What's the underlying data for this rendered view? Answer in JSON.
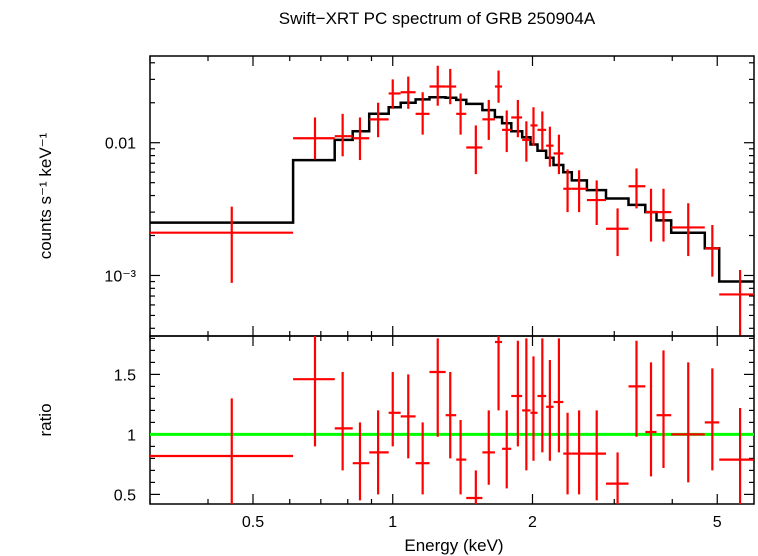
{
  "chart_data": {
    "type": "scatter",
    "title": "Swift−XRT PC spectrum of GRB 250904A",
    "xlabel": "Energy (keV)",
    "x_scale": "log",
    "xlim": [
      0.3,
      6.0
    ],
    "x_ticks": [
      {
        "value": 0.5,
        "label": "0.5"
      },
      {
        "value": 1,
        "label": "1"
      },
      {
        "value": 2,
        "label": "2"
      },
      {
        "value": 5,
        "label": "5"
      }
    ],
    "colors": {
      "data": "#ff0000",
      "model": "#000000",
      "unity_line": "#00ff00",
      "axes": "#000000"
    },
    "panels": [
      {
        "name": "spectrum",
        "ylabel": "counts s⁻¹ keV⁻¹",
        "y_scale": "log",
        "ylim": [
          0.00035,
          0.045
        ],
        "y_ticks": [
          {
            "value": 0.01,
            "label": "0.01"
          },
          {
            "value": 0.001,
            "label": "10⁻³"
          }
        ],
        "data": [
          {
            "x": 0.45,
            "xlo": 0.3,
            "xhi": 0.61,
            "y": 0.0021,
            "ylo": 0.00088,
            "yhi": 0.0033
          },
          {
            "x": 0.68,
            "xlo": 0.61,
            "xhi": 0.75,
            "y": 0.0108,
            "ylo": 0.0075,
            "yhi": 0.0155
          },
          {
            "x": 0.78,
            "xlo": 0.75,
            "xhi": 0.82,
            "y": 0.0112,
            "ylo": 0.0079,
            "yhi": 0.0165
          },
          {
            "x": 0.85,
            "xlo": 0.82,
            "xhi": 0.89,
            "y": 0.0108,
            "ylo": 0.0074,
            "yhi": 0.0155
          },
          {
            "x": 0.93,
            "xlo": 0.89,
            "xhi": 0.98,
            "y": 0.015,
            "ylo": 0.011,
            "yhi": 0.02
          },
          {
            "x": 1.0,
            "xlo": 0.98,
            "xhi": 1.04,
            "y": 0.0235,
            "ylo": 0.018,
            "yhi": 0.03
          },
          {
            "x": 1.08,
            "xlo": 1.04,
            "xhi": 1.12,
            "y": 0.024,
            "ylo": 0.018,
            "yhi": 0.0315
          },
          {
            "x": 1.16,
            "xlo": 1.12,
            "xhi": 1.2,
            "y": 0.0165,
            "ylo": 0.0115,
            "yhi": 0.024
          },
          {
            "x": 1.25,
            "xlo": 1.2,
            "xhi": 1.3,
            "y": 0.0265,
            "ylo": 0.019,
            "yhi": 0.038
          },
          {
            "x": 1.33,
            "xlo": 1.3,
            "xhi": 1.37,
            "y": 0.0265,
            "ylo": 0.0195,
            "yhi": 0.036
          },
          {
            "x": 1.4,
            "xlo": 1.37,
            "xhi": 1.44,
            "y": 0.0165,
            "ylo": 0.0115,
            "yhi": 0.0235
          },
          {
            "x": 1.51,
            "xlo": 1.44,
            "xhi": 1.56,
            "y": 0.0092,
            "ylo": 0.0058,
            "yhi": 0.0135
          },
          {
            "x": 1.61,
            "xlo": 1.56,
            "xhi": 1.66,
            "y": 0.015,
            "ylo": 0.0105,
            "yhi": 0.021
          },
          {
            "x": 1.69,
            "xlo": 1.66,
            "xhi": 1.72,
            "y": 0.0265,
            "ylo": 0.02,
            "yhi": 0.035
          },
          {
            "x": 1.76,
            "xlo": 1.72,
            "xhi": 1.8,
            "y": 0.0125,
            "ylo": 0.0085,
            "yhi": 0.0175
          },
          {
            "x": 1.86,
            "xlo": 1.8,
            "xhi": 1.9,
            "y": 0.0155,
            "ylo": 0.011,
            "yhi": 0.021
          },
          {
            "x": 1.94,
            "xlo": 1.9,
            "xhi": 1.98,
            "y": 0.0105,
            "ylo": 0.0072,
            "yhi": 0.0145
          },
          {
            "x": 2.01,
            "xlo": 1.98,
            "xhi": 2.05,
            "y": 0.0135,
            "ylo": 0.0095,
            "yhi": 0.0185
          },
          {
            "x": 2.1,
            "xlo": 2.05,
            "xhi": 2.14,
            "y": 0.0125,
            "ylo": 0.0088,
            "yhi": 0.0172
          },
          {
            "x": 2.18,
            "xlo": 2.14,
            "xhi": 2.22,
            "y": 0.0095,
            "ylo": 0.0066,
            "yhi": 0.0132
          },
          {
            "x": 2.28,
            "xlo": 2.22,
            "xhi": 2.33,
            "y": 0.0083,
            "ylo": 0.0058,
            "yhi": 0.0115
          },
          {
            "x": 2.38,
            "xlo": 2.33,
            "xhi": 2.43,
            "y": 0.0045,
            "ylo": 0.003,
            "yhi": 0.0063
          },
          {
            "x": 2.52,
            "xlo": 2.43,
            "xhi": 2.62,
            "y": 0.0045,
            "ylo": 0.003,
            "yhi": 0.0062
          },
          {
            "x": 2.75,
            "xlo": 2.62,
            "xhi": 2.88,
            "y": 0.0037,
            "ylo": 0.0024,
            "yhi": 0.0052
          },
          {
            "x": 3.05,
            "xlo": 2.88,
            "xhi": 3.22,
            "y": 0.00225,
            "ylo": 0.0014,
            "yhi": 0.0032
          },
          {
            "x": 3.35,
            "xlo": 3.22,
            "xhi": 3.5,
            "y": 0.0047,
            "ylo": 0.0032,
            "yhi": 0.0064
          },
          {
            "x": 3.6,
            "xlo": 3.5,
            "xhi": 3.7,
            "y": 0.003,
            "ylo": 0.0018,
            "yhi": 0.0045
          },
          {
            "x": 3.83,
            "xlo": 3.7,
            "xhi": 3.98,
            "y": 0.003,
            "ylo": 0.0018,
            "yhi": 0.0045
          },
          {
            "x": 4.33,
            "xlo": 3.98,
            "xhi": 4.7,
            "y": 0.0023,
            "ylo": 0.0014,
            "yhi": 0.0035
          },
          {
            "x": 4.88,
            "xlo": 4.7,
            "xhi": 5.05,
            "y": 0.0016,
            "ylo": 0.00098,
            "yhi": 0.0024
          },
          {
            "x": 5.6,
            "xlo": 5.05,
            "xhi": 6.0,
            "y": 0.00072,
            "ylo": 0.00035,
            "yhi": 0.0011
          }
        ],
        "model": [
          {
            "xlo": 0.3,
            "xhi": 0.61,
            "y": 0.0025
          },
          {
            "xlo": 0.61,
            "xhi": 0.75,
            "y": 0.0074
          },
          {
            "xlo": 0.75,
            "xhi": 0.82,
            "y": 0.0105
          },
          {
            "xlo": 0.82,
            "xhi": 0.89,
            "y": 0.0122
          },
          {
            "xlo": 0.89,
            "xhi": 0.98,
            "y": 0.0165
          },
          {
            "xlo": 0.98,
            "xhi": 1.04,
            "y": 0.0185
          },
          {
            "xlo": 1.04,
            "xhi": 1.12,
            "y": 0.02
          },
          {
            "xlo": 1.12,
            "xhi": 1.2,
            "y": 0.0212
          },
          {
            "xlo": 1.2,
            "xhi": 1.3,
            "y": 0.022
          },
          {
            "xlo": 1.3,
            "xhi": 1.37,
            "y": 0.0218
          },
          {
            "xlo": 1.37,
            "xhi": 1.44,
            "y": 0.021
          },
          {
            "xlo": 1.44,
            "xhi": 1.56,
            "y": 0.0196
          },
          {
            "xlo": 1.56,
            "xhi": 1.66,
            "y": 0.0176
          },
          {
            "xlo": 1.66,
            "xhi": 1.72,
            "y": 0.0156
          },
          {
            "xlo": 1.72,
            "xhi": 1.8,
            "y": 0.014
          },
          {
            "xlo": 1.8,
            "xhi": 1.9,
            "y": 0.0122
          },
          {
            "xlo": 1.9,
            "xhi": 1.98,
            "y": 0.011
          },
          {
            "xlo": 1.98,
            "xhi": 2.05,
            "y": 0.0097
          },
          {
            "xlo": 2.05,
            "xhi": 2.14,
            "y": 0.0087
          },
          {
            "xlo": 2.14,
            "xhi": 2.22,
            "y": 0.0077
          },
          {
            "xlo": 2.22,
            "xhi": 2.33,
            "y": 0.0068
          },
          {
            "xlo": 2.33,
            "xhi": 2.43,
            "y": 0.006
          },
          {
            "xlo": 2.43,
            "xhi": 2.62,
            "y": 0.0052
          },
          {
            "xlo": 2.62,
            "xhi": 2.88,
            "y": 0.0044
          },
          {
            "xlo": 2.88,
            "xhi": 3.22,
            "y": 0.0038
          },
          {
            "xlo": 3.22,
            "xhi": 3.5,
            "y": 0.0034
          },
          {
            "xlo": 3.5,
            "xhi": 3.7,
            "y": 0.003
          },
          {
            "xlo": 3.7,
            "xhi": 3.98,
            "y": 0.0026
          },
          {
            "xlo": 3.98,
            "xhi": 4.7,
            "y": 0.0021
          },
          {
            "xlo": 4.7,
            "xhi": 5.05,
            "y": 0.0016
          },
          {
            "xlo": 5.05,
            "xhi": 6.0,
            "y": 0.0009
          }
        ]
      },
      {
        "name": "ratio",
        "ylabel": "ratio",
        "y_scale": "linear",
        "ylim": [
          0.42,
          1.82
        ],
        "y_ticks": [
          {
            "value": 0.5,
            "label": "0.5"
          },
          {
            "value": 1,
            "label": "1"
          },
          {
            "value": 1.5,
            "label": "1.5"
          }
        ],
        "reference_line": 1,
        "data": [
          {
            "x": 0.45,
            "xlo": 0.3,
            "xhi": 0.61,
            "y": 0.82,
            "ylo": 0.35,
            "yhi": 1.3
          },
          {
            "x": 0.68,
            "xlo": 0.61,
            "xhi": 0.75,
            "y": 1.46,
            "ylo": 0.9,
            "yhi": 1.82
          },
          {
            "x": 0.78,
            "xlo": 0.75,
            "xhi": 0.82,
            "y": 1.05,
            "ylo": 0.7,
            "yhi": 1.52
          },
          {
            "x": 0.85,
            "xlo": 0.82,
            "xhi": 0.89,
            "y": 0.76,
            "ylo": 0.45,
            "yhi": 1.1
          },
          {
            "x": 0.93,
            "xlo": 0.89,
            "xhi": 0.98,
            "y": 0.85,
            "ylo": 0.5,
            "yhi": 1.2
          },
          {
            "x": 1.0,
            "xlo": 0.98,
            "xhi": 1.04,
            "y": 1.18,
            "ylo": 0.9,
            "yhi": 1.52
          },
          {
            "x": 1.08,
            "xlo": 1.04,
            "xhi": 1.12,
            "y": 1.15,
            "ylo": 0.8,
            "yhi": 1.5
          },
          {
            "x": 1.16,
            "xlo": 1.12,
            "xhi": 1.2,
            "y": 0.76,
            "ylo": 0.5,
            "yhi": 1.1
          },
          {
            "x": 1.25,
            "xlo": 1.2,
            "xhi": 1.3,
            "y": 1.52,
            "ylo": 0.98,
            "yhi": 1.8
          },
          {
            "x": 1.33,
            "xlo": 1.3,
            "xhi": 1.37,
            "y": 1.16,
            "ylo": 0.8,
            "yhi": 1.52
          },
          {
            "x": 1.4,
            "xlo": 1.37,
            "xhi": 1.44,
            "y": 0.79,
            "ylo": 0.5,
            "yhi": 1.12
          },
          {
            "x": 1.51,
            "xlo": 1.44,
            "xhi": 1.56,
            "y": 0.47,
            "ylo": 0.3,
            "yhi": 0.7
          },
          {
            "x": 1.61,
            "xlo": 1.56,
            "xhi": 1.66,
            "y": 0.85,
            "ylo": 0.58,
            "yhi": 1.2
          },
          {
            "x": 1.69,
            "xlo": 1.66,
            "xhi": 1.72,
            "y": 1.77,
            "ylo": 1.2,
            "yhi": 1.82
          },
          {
            "x": 1.76,
            "xlo": 1.72,
            "xhi": 1.8,
            "y": 0.88,
            "ylo": 0.55,
            "yhi": 1.2
          },
          {
            "x": 1.86,
            "xlo": 1.8,
            "xhi": 1.9,
            "y": 1.32,
            "ylo": 0.9,
            "yhi": 1.78
          },
          {
            "x": 1.94,
            "xlo": 1.9,
            "xhi": 1.98,
            "y": 1.2,
            "ylo": 0.7,
            "yhi": 1.8
          },
          {
            "x": 2.01,
            "xlo": 1.98,
            "xhi": 2.05,
            "y": 1.18,
            "ylo": 0.78,
            "yhi": 1.65
          },
          {
            "x": 2.1,
            "xlo": 2.05,
            "xhi": 2.14,
            "y": 1.32,
            "ylo": 0.85,
            "yhi": 1.8
          },
          {
            "x": 2.18,
            "xlo": 2.14,
            "xhi": 2.22,
            "y": 1.23,
            "ylo": 0.78,
            "yhi": 1.62
          },
          {
            "x": 2.28,
            "xlo": 2.22,
            "xhi": 2.33,
            "y": 1.27,
            "ylo": 0.85,
            "yhi": 1.8
          },
          {
            "x": 2.38,
            "xlo": 2.33,
            "xhi": 2.43,
            "y": 0.84,
            "ylo": 0.5,
            "yhi": 1.18
          },
          {
            "x": 2.52,
            "xlo": 2.43,
            "xhi": 2.62,
            "y": 0.84,
            "ylo": 0.5,
            "yhi": 1.2
          },
          {
            "x": 2.75,
            "xlo": 2.62,
            "xhi": 2.88,
            "y": 0.84,
            "ylo": 0.45,
            "yhi": 1.2
          },
          {
            "x": 3.05,
            "xlo": 2.88,
            "xhi": 3.22,
            "y": 0.59,
            "ylo": 0.38,
            "yhi": 0.85
          },
          {
            "x": 3.35,
            "xlo": 3.22,
            "xhi": 3.5,
            "y": 1.4,
            "ylo": 0.98,
            "yhi": 1.78
          },
          {
            "x": 3.6,
            "xlo": 3.5,
            "xhi": 3.7,
            "y": 1.02,
            "ylo": 0.65,
            "yhi": 1.6
          },
          {
            "x": 3.83,
            "xlo": 3.7,
            "xhi": 3.98,
            "y": 1.16,
            "ylo": 0.72,
            "yhi": 1.7
          },
          {
            "x": 4.33,
            "xlo": 3.98,
            "xhi": 4.7,
            "y": 1.0,
            "ylo": 0.6,
            "yhi": 1.6
          },
          {
            "x": 4.88,
            "xlo": 4.7,
            "xhi": 5.05,
            "y": 1.1,
            "ylo": 0.7,
            "yhi": 1.55
          },
          {
            "x": 5.6,
            "xlo": 5.05,
            "xhi": 6.0,
            "y": 0.79,
            "ylo": 0.38,
            "yhi": 1.22
          }
        ]
      }
    ]
  }
}
